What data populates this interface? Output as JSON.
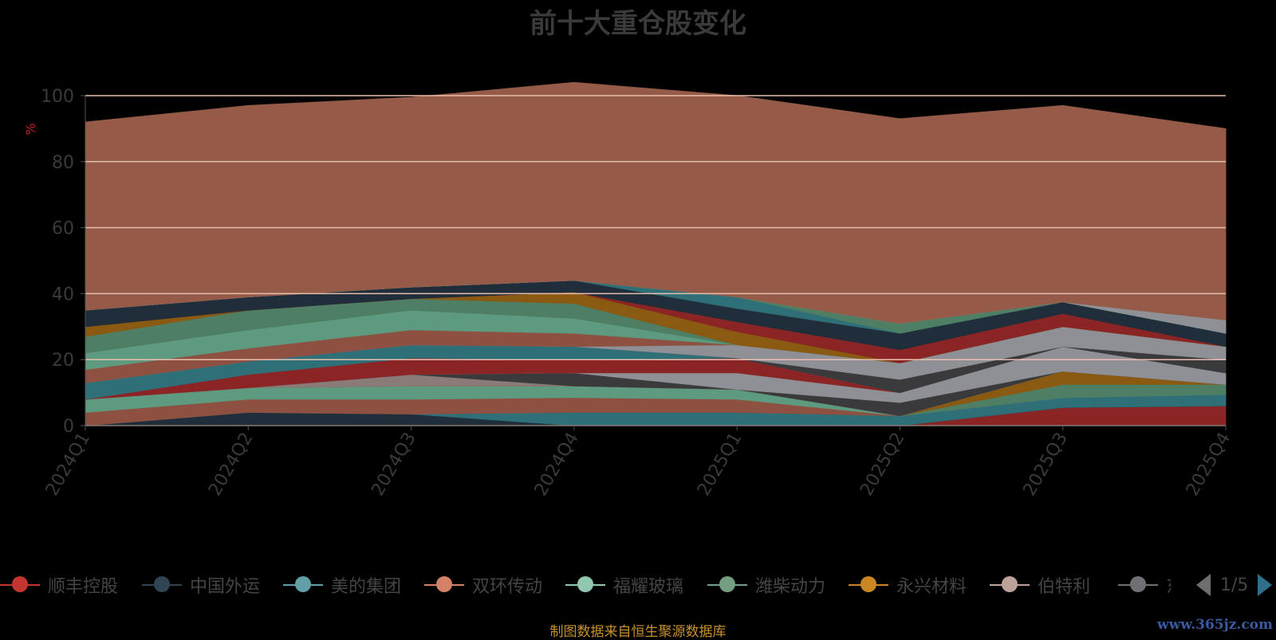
{
  "chart_data": {
    "type": "area",
    "stacked": true,
    "title": "前十大重仓股变化",
    "ylabel": "%",
    "ylim": [
      0,
      100
    ],
    "yticks": [
      0,
      20,
      40,
      60,
      80,
      100
    ],
    "categories": [
      "2024Q1",
      "2024Q2",
      "2024Q3",
      "2024Q4",
      "2025Q1",
      "2025Q2",
      "2025Q3",
      "2025Q4"
    ],
    "legend_position": "bottom",
    "grid": true,
    "series": [
      {
        "name": "顺丰控股",
        "color": "#8b2525",
        "values": [
          0,
          0,
          0,
          0,
          0,
          0,
          5.5,
          6
        ]
      },
      {
        "name": "中国外运",
        "color": "#1f2e3a",
        "values": [
          0,
          4,
          3.5,
          0,
          0,
          0,
          0,
          0
        ]
      },
      {
        "name": "美的集团",
        "color": "#2f6f78",
        "values": [
          0,
          0,
          0,
          4,
          4,
          3,
          3,
          3.5
        ]
      },
      {
        "name": "双环传动",
        "color": "#8e5040",
        "values": [
          4,
          4,
          4.5,
          4.5,
          4,
          0,
          0,
          0
        ]
      },
      {
        "name": "福耀玻璃",
        "color": "#5e9a80",
        "values": [
          4,
          3.5,
          4,
          3.5,
          3,
          0,
          0,
          0
        ]
      },
      {
        "name": "潍柴动力",
        "color": "#4e7e64",
        "values": [
          0,
          0,
          0,
          0,
          0,
          0,
          4,
          3
        ]
      },
      {
        "name": "永兴材料",
        "color": "#8a5a12",
        "values": [
          0,
          0,
          0,
          0,
          0,
          0,
          4,
          0
        ]
      },
      {
        "name": "伯特利",
        "color": "#8a7a78",
        "values": [
          0,
          0,
          3.5,
          0,
          0,
          0,
          0,
          0
        ]
      },
      {
        "name": "东",
        "color": "#3a3a3c",
        "values": [
          0,
          0,
          0,
          4,
          0,
          4,
          0,
          0
        ]
      },
      {
        "name": "",
        "color": "#8e9096",
        "values": [
          0,
          0,
          0,
          0,
          5,
          3,
          7.5,
          3.5
        ]
      },
      {
        "name": "",
        "color": "#8b2525",
        "values": [
          0,
          4,
          5,
          4,
          4.5,
          0,
          0,
          0
        ]
      },
      {
        "name": "",
        "color": "#2f6f78",
        "values": [
          5,
          4,
          4,
          4,
          0,
          0,
          0,
          0
        ]
      },
      {
        "name": "",
        "color": "#3a3a3c",
        "values": [
          0,
          0,
          0,
          0,
          0,
          4,
          0,
          4
        ]
      },
      {
        "name": "",
        "color": "#8e9096",
        "values": [
          0,
          0,
          0,
          0,
          4,
          5,
          6,
          4
        ]
      },
      {
        "name": "",
        "color": "#8e5040",
        "values": [
          4,
          4,
          4.5,
          4,
          0,
          0,
          0,
          0
        ]
      },
      {
        "name": "",
        "color": "#5e9a80",
        "values": [
          5,
          5.5,
          6,
          4.5,
          0,
          0,
          0,
          0
        ]
      },
      {
        "name": "",
        "color": "#4e7e64",
        "values": [
          5,
          6,
          3.5,
          4.5,
          0,
          0,
          0,
          0
        ]
      },
      {
        "name": "",
        "color": "#8a5a12",
        "values": [
          3,
          0,
          0,
          3.5,
          4,
          0,
          0,
          0
        ]
      },
      {
        "name": "",
        "color": "#8b2525",
        "values": [
          0,
          0,
          0,
          0,
          3,
          4,
          4,
          0
        ]
      },
      {
        "name": "",
        "color": "#1f2e3a",
        "values": [
          5,
          4,
          3.5,
          3.5,
          4,
          5,
          3.5,
          4
        ]
      },
      {
        "name": "",
        "color": "#2f6f78",
        "values": [
          0,
          0,
          0,
          0,
          3.5,
          0,
          0,
          0
        ]
      },
      {
        "name": "",
        "color": "#4e7e64",
        "values": [
          0,
          0,
          0,
          0,
          0,
          3,
          0,
          0
        ]
      },
      {
        "name": "",
        "color": "#8e9096",
        "values": [
          0,
          0,
          0,
          0,
          0,
          0,
          0,
          4
        ]
      },
      {
        "name": "",
        "color": "#955b48",
        "values": [
          57,
          58,
          57.5,
          60,
          61,
          62,
          59.5,
          58
        ]
      }
    ]
  },
  "legend": {
    "items": [
      {
        "name": "顺丰控股",
        "color": "#c23531"
      },
      {
        "name": "中国外运",
        "color": "#2f4554"
      },
      {
        "name": "美的集团",
        "color": "#61a0a8"
      },
      {
        "name": "双环传动",
        "color": "#d48265"
      },
      {
        "name": "福耀玻璃",
        "color": "#91c7ae"
      },
      {
        "name": "潍柴动力",
        "color": "#749f83"
      },
      {
        "name": "永兴材料",
        "color": "#ca8622"
      },
      {
        "name": "伯特利",
        "color": "#bda29a"
      },
      {
        "name": "东",
        "color": "#6e7074"
      }
    ],
    "page": "1/5"
  },
  "footer": {
    "source": "制图数据来自恒生聚源数据库",
    "watermark": "www.365jz.com"
  }
}
